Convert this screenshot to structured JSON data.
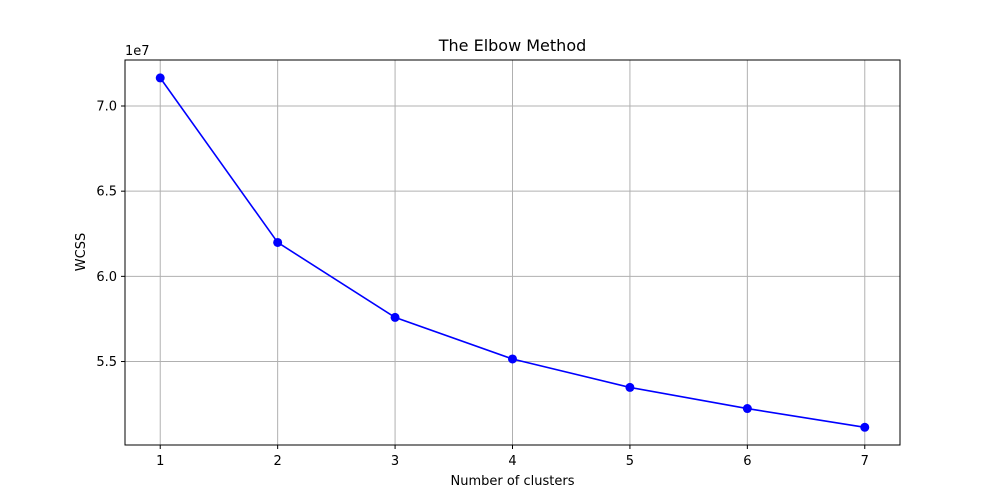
{
  "chart_data": {
    "type": "line",
    "title": "The Elbow Method",
    "xlabel": "Number of clusters",
    "ylabel": "WCSS",
    "y_offset_label": "1e7",
    "x": [
      1,
      2,
      3,
      4,
      5,
      6,
      7
    ],
    "series": [
      {
        "values": [
          71650000,
          61990000,
          57590000,
          55150000,
          53480000,
          52240000,
          51140000
        ],
        "color": "#0000ff",
        "marker": "circle"
      }
    ],
    "x_ticks": [
      1,
      2,
      3,
      4,
      5,
      6,
      7
    ],
    "x_tick_labels": [
      "1",
      "2",
      "3",
      "4",
      "5",
      "6",
      "7"
    ],
    "y_ticks": [
      55000000,
      60000000,
      65000000,
      70000000
    ],
    "y_tick_labels": [
      "5.5",
      "6.0",
      "6.5",
      "7.0"
    ],
    "xlim": [
      0.7,
      7.3
    ],
    "ylim": [
      50100000,
      72700000
    ],
    "grid": true,
    "grid_color": "#b0b0b0"
  }
}
